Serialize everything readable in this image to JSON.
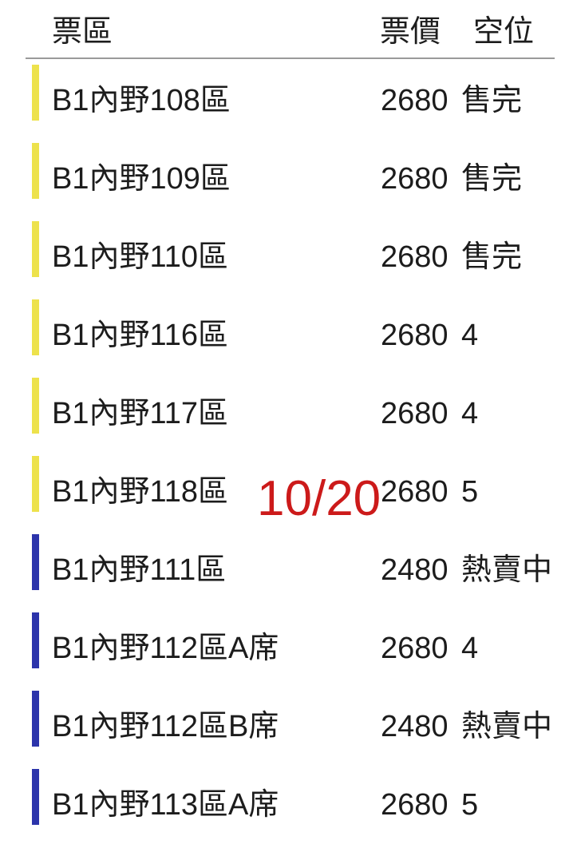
{
  "table": {
    "headers": [
      {
        "key": "zone",
        "label": "票區"
      },
      {
        "key": "price",
        "label": "票價"
      },
      {
        "key": "status",
        "label": "空位"
      }
    ],
    "rows": [
      {
        "zone": "B1內野108區",
        "price": "2680",
        "status": "售完",
        "bar_color": "yellow"
      },
      {
        "zone": "B1內野109區",
        "price": "2680",
        "status": "售完",
        "bar_color": "yellow"
      },
      {
        "zone": "B1內野110區",
        "price": "2680",
        "status": "售完",
        "bar_color": "yellow"
      },
      {
        "zone": "B1內野116區",
        "price": "2680",
        "status": "4",
        "bar_color": "yellow"
      },
      {
        "zone": "B1內野117區",
        "price": "2680",
        "status": "4",
        "bar_color": "yellow"
      },
      {
        "zone": "B1內野118區",
        "price": "2680",
        "status": "5",
        "bar_color": "yellow"
      },
      {
        "zone": "B1內野111區",
        "price": "2480",
        "status": "熱賣中",
        "bar_color": "blue"
      },
      {
        "zone": "B1內野112區A席",
        "price": "2680",
        "status": "4",
        "bar_color": "blue"
      },
      {
        "zone": "B1內野112區B席",
        "price": "2480",
        "status": "熱賣中",
        "bar_color": "blue"
      },
      {
        "zone": "B1內野113區A席",
        "price": "2680",
        "status": "5",
        "bar_color": "blue"
      }
    ]
  },
  "annotation": {
    "text": "10/20"
  },
  "colors": {
    "bar_yellow": "#ede24c",
    "bar_blue": "#2c34ab",
    "text": "#1c1c1c",
    "divider": "#9a9a9a",
    "annotation_red": "#cc1a1a"
  }
}
